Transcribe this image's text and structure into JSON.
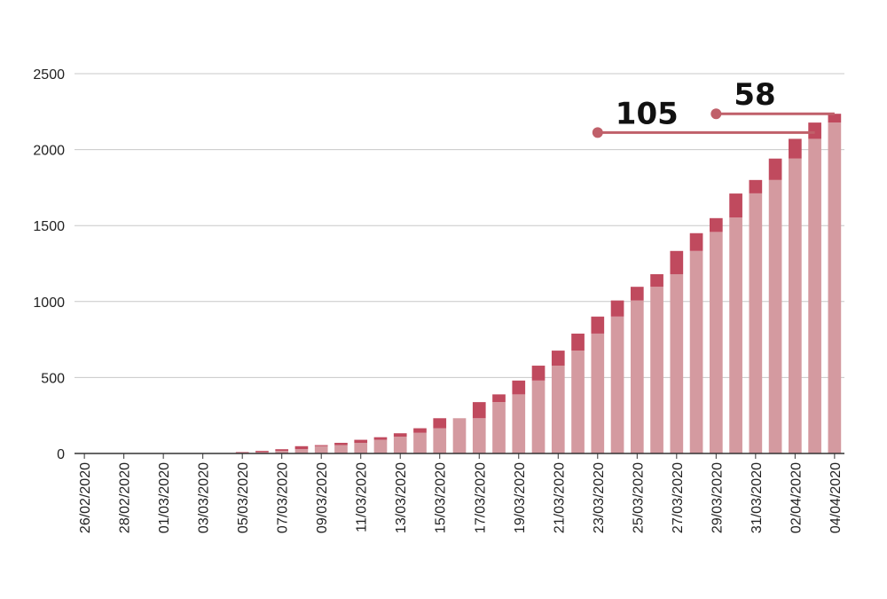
{
  "chart_data": {
    "type": "bar",
    "stacked": true,
    "title": "",
    "xlabel": "",
    "ylabel": "",
    "ylim": [
      0,
      2500
    ],
    "y_ticks": [
      0,
      500,
      1000,
      1500,
      2000,
      2500
    ],
    "grid": true,
    "categories": [
      "26/02/2020",
      "27/02/2020",
      "28/02/2020",
      "29/02/2020",
      "01/03/2020",
      "02/03/2020",
      "03/03/2020",
      "04/03/2020",
      "05/03/2020",
      "06/03/2020",
      "07/03/2020",
      "08/03/2020",
      "09/03/2020",
      "10/03/2020",
      "11/03/2020",
      "12/03/2020",
      "13/03/2020",
      "14/03/2020",
      "15/03/2020",
      "16/03/2020",
      "17/03/2020",
      "18/03/2020",
      "19/03/2020",
      "20/03/2020",
      "21/03/2020",
      "22/03/2020",
      "23/03/2020",
      "24/03/2020",
      "25/03/2020",
      "26/03/2020",
      "27/03/2020",
      "28/03/2020",
      "29/03/2020",
      "30/03/2020",
      "31/03/2020",
      "01/04/2020",
      "02/04/2020",
      "03/04/2020",
      "04/04/2020"
    ],
    "tick_labels_shown": [
      "26/02/2020",
      "28/02/2020",
      "01/03/2020",
      "03/03/2020",
      "05/03/2020",
      "07/03/2020",
      "09/03/2020",
      "11/03/2020",
      "13/03/2020",
      "15/03/2020",
      "17/03/2020",
      "19/03/2020",
      "21/03/2020",
      "23/03/2020",
      "25/03/2020",
      "27/03/2020",
      "29/03/2020",
      "31/03/2020",
      "02/04/2020",
      "04/04/2020"
    ],
    "series": [
      {
        "color": "#d49aa0",
        "values": [
          0,
          0,
          0,
          0,
          0,
          0,
          0,
          0,
          4,
          9,
          17,
          28,
          48,
          55,
          70,
          90,
          110,
          136,
          166,
          232,
          232,
          338,
          389,
          480,
          578,
          677,
          789,
          901,
          1007,
          1097,
          1180,
          1333,
          1458,
          1553,
          1712,
          1800,
          1941,
          2071,
          2178
        ]
      },
      {
        "color": "#c04a5e",
        "values": [
          0,
          0,
          0,
          0,
          0,
          0,
          0,
          0,
          5,
          8,
          11,
          20,
          7,
          15,
          20,
          17,
          23,
          30,
          66,
          0,
          106,
          51,
          91,
          98,
          99,
          112,
          112,
          106,
          90,
          83,
          153,
          117,
          91,
          158,
          88,
          141,
          130,
          107,
          58
        ]
      }
    ],
    "annotations": [
      {
        "text": "105",
        "from": "23/03/2020",
        "to": "03/04/2020",
        "level": 2112,
        "color": "#c0606a"
      },
      {
        "text": "58",
        "from": "29/03/2020",
        "to": "04/04/2020",
        "level": 2236,
        "color": "#c0606a"
      }
    ]
  }
}
